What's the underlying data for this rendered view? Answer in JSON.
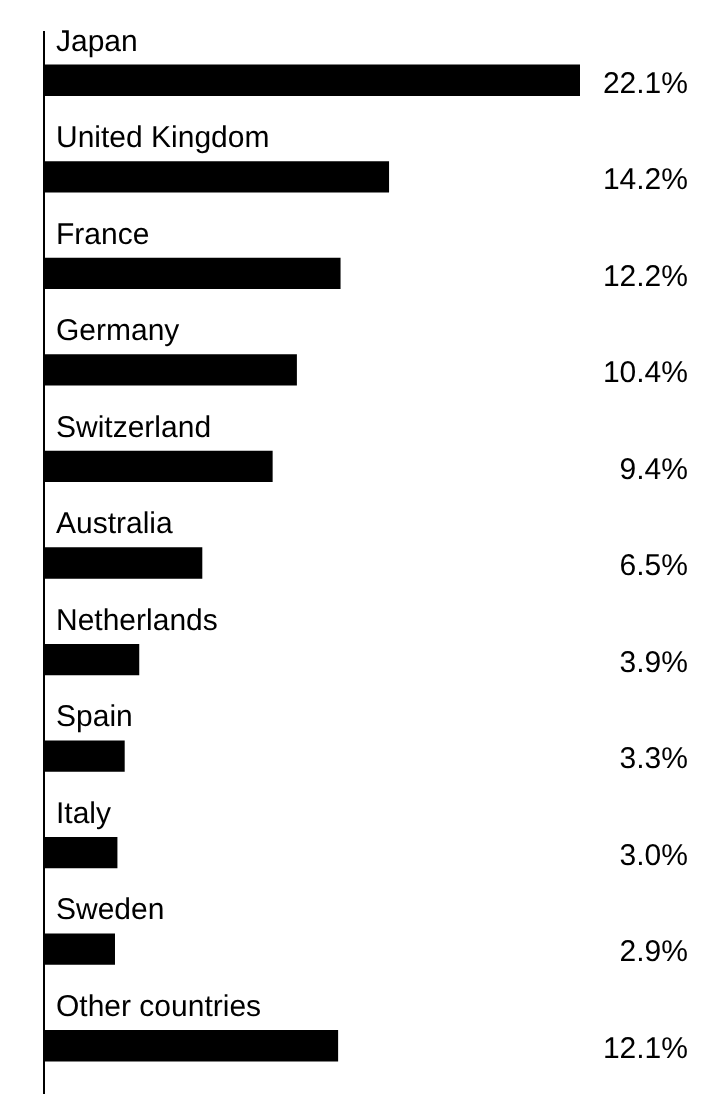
{
  "chart_data": {
    "type": "bar",
    "orientation": "horizontal",
    "categories": [
      "Japan",
      "United Kingdom",
      "France",
      "Germany",
      "Switzerland",
      "Australia",
      "Netherlands",
      "Spain",
      "Italy",
      "Sweden",
      "Other countries"
    ],
    "values": [
      22.1,
      14.2,
      12.2,
      10.4,
      9.4,
      6.5,
      3.9,
      3.3,
      3.0,
      2.9,
      12.1
    ],
    "color": "#000000",
    "value_labels": [
      "22.1%",
      "14.2%",
      "12.2%",
      "10.4%",
      "9.4%",
      "6.5%",
      "3.9%",
      "3.3%",
      "3.0%",
      "2.9%",
      "12.1%"
    ],
    "grid": false,
    "legend": false
  }
}
